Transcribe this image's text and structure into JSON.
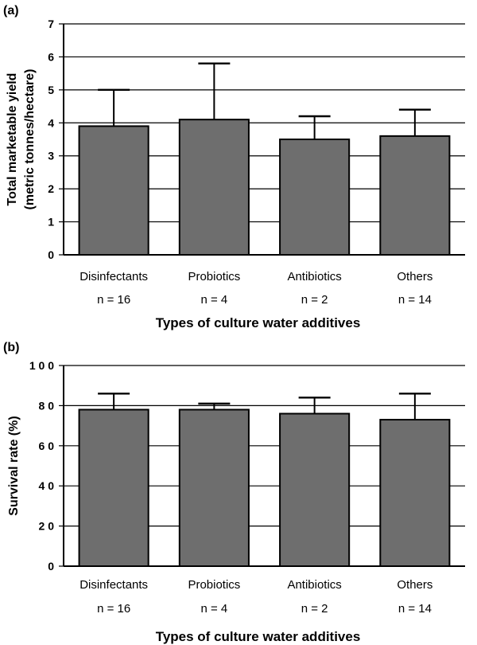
{
  "chart_data": [
    {
      "type": "bar",
      "panel_label": "(a)",
      "categories": [
        "Disinfectants",
        "Probiotics",
        "Antibiotics",
        "Others"
      ],
      "sample_sizes": [
        "n = 16",
        "n = 4",
        "n = 2",
        "n = 14"
      ],
      "values": [
        3.9,
        4.1,
        3.5,
        3.6
      ],
      "error_upper": [
        5.0,
        5.8,
        4.2,
        4.4
      ],
      "ylabel_lines": [
        "Total marketable yield",
        "(metric tonnes/hectare)"
      ],
      "xlabel": "Types of culture water additives",
      "ylim": [
        0,
        7
      ],
      "yticks": [
        0,
        1,
        2,
        3,
        4,
        5,
        6,
        7
      ],
      "ytick_labels": [
        "0",
        "1",
        "2",
        "3",
        "4",
        "5",
        "6",
        "7"
      ],
      "grid": true,
      "bar_color": "#6e6e6e"
    },
    {
      "type": "bar",
      "panel_label": "(b)",
      "categories": [
        "Disinfectants",
        "Probiotics",
        "Antibiotics",
        "Others"
      ],
      "sample_sizes": [
        "n = 16",
        "n = 4",
        "n = 2",
        "n = 14"
      ],
      "values": [
        78,
        78,
        76,
        73
      ],
      "error_upper": [
        86,
        81,
        84,
        86
      ],
      "ylabel_lines": [
        "Survival rate (%)"
      ],
      "xlabel": "Types of culture water additives",
      "ylim": [
        0,
        100
      ],
      "yticks": [
        0,
        20,
        40,
        60,
        80,
        100
      ],
      "ytick_labels": [
        "0",
        "2 0",
        "4 0",
        "6 0",
        "8 0",
        "1 0 0"
      ],
      "grid": true,
      "bar_color": "#6e6e6e"
    }
  ]
}
